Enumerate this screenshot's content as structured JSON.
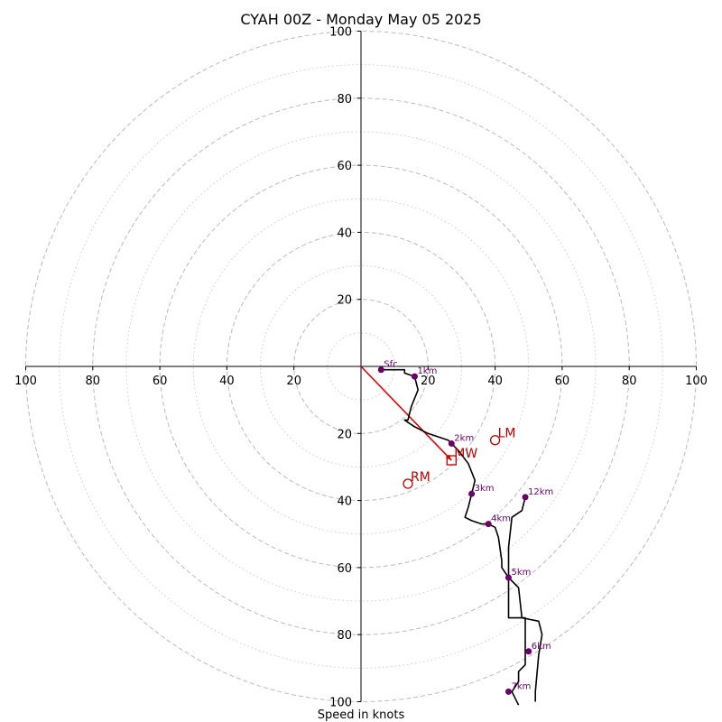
{
  "chart_data": {
    "type": "hodograph",
    "title": "CYAH 00Z - Monday May 05 2025",
    "xlabel": "Speed in knots",
    "range": [
      -100,
      100
    ],
    "ring_major": [
      20,
      40,
      60,
      80,
      100
    ],
    "ring_minor": [
      10,
      30,
      50,
      70,
      90
    ],
    "x_ticks": [
      "100",
      "80",
      "60",
      "40",
      "20",
      "20",
      "40",
      "60",
      "80",
      "100"
    ],
    "y_ticks": [
      "20",
      "40",
      "60",
      "80",
      "100"
    ],
    "grid": true,
    "colors": {
      "trace": "#000000",
      "height_marker": "#6a006a",
      "motion": "#c00000",
      "shear_vector": "#e00000",
      "ring": "#bbbbbb"
    },
    "hodograph": [
      [
        6,
        -1
      ],
      [
        13,
        -1
      ],
      [
        13,
        -2
      ],
      [
        16,
        -3
      ],
      [
        17,
        -7
      ],
      [
        15,
        -12
      ],
      [
        14,
        -16
      ],
      [
        13,
        -16
      ],
      [
        16,
        -18
      ],
      [
        20,
        -20
      ],
      [
        26,
        -22
      ],
      [
        27,
        -23
      ],
      [
        29,
        -25
      ],
      [
        32,
        -29
      ],
      [
        34,
        -34
      ],
      [
        33,
        -38
      ],
      [
        32,
        -42
      ],
      [
        31,
        -45
      ],
      [
        33,
        -46
      ],
      [
        36,
        -47
      ],
      [
        38,
        -47
      ],
      [
        40,
        -48
      ],
      [
        41,
        -51
      ],
      [
        42,
        -58
      ],
      [
        42,
        -60
      ],
      [
        44,
        -63
      ],
      [
        47,
        -66
      ],
      [
        48,
        -75
      ],
      [
        53,
        -76
      ],
      [
        54,
        -80
      ],
      [
        53,
        -86
      ],
      [
        52,
        -97
      ],
      [
        52,
        -100
      ]
    ],
    "hodograph_upper": [
      [
        47,
        -101
      ],
      [
        46,
        -99
      ],
      [
        45,
        -97
      ],
      [
        47,
        -94
      ],
      [
        47,
        -91
      ],
      [
        49,
        -89
      ],
      [
        49,
        -85
      ],
      [
        49,
        -80
      ],
      [
        49,
        -75
      ],
      [
        44,
        -75
      ],
      [
        44,
        -63
      ],
      [
        44,
        -54
      ],
      [
        45,
        -45
      ],
      [
        48,
        -43
      ],
      [
        49,
        -39
      ]
    ],
    "height_markers": [
      {
        "label": "Sfc",
        "u": 6,
        "v": -1
      },
      {
        "label": "1km",
        "u": 16,
        "v": -3
      },
      {
        "label": "2km",
        "u": 27,
        "v": -23
      },
      {
        "label": "3km",
        "u": 33,
        "v": -38
      },
      {
        "label": "4km",
        "u": 38,
        "v": -47
      },
      {
        "label": "5km",
        "u": 44,
        "v": -63
      },
      {
        "label": "6km",
        "u": 50,
        "v": -85
      },
      {
        "label": "7km",
        "u": 44,
        "v": -97
      },
      {
        "label": "12km",
        "u": 49,
        "v": -39
      }
    ],
    "storm_motion": {
      "lm": {
        "label": "LM",
        "u": 40,
        "v": -22
      },
      "rm": {
        "label": "RM",
        "u": 14,
        "v": -35
      },
      "mw": {
        "label": "MW",
        "u": 27,
        "v": -28
      }
    },
    "shear_vector": {
      "from": [
        0,
        0
      ],
      "to": [
        27,
        -28
      ]
    }
  }
}
